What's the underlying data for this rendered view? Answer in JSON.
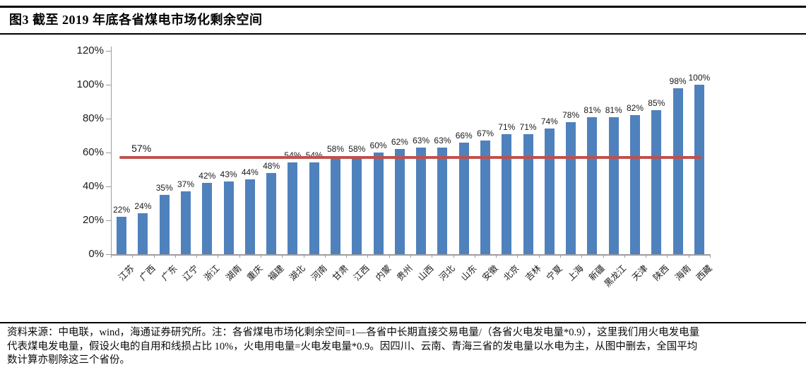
{
  "header": {
    "title": "图3  截至 2019 年底各省煤电市场化剩余空间"
  },
  "chart_data": {
    "type": "bar",
    "title": "截至2019年底各省煤电市场化剩余空间",
    "categories": [
      "江苏",
      "广西",
      "广东",
      "辽宁",
      "浙江",
      "湖南",
      "重庆",
      "福建",
      "湖北",
      "河南",
      "甘肃",
      "江西",
      "内蒙",
      "贵州",
      "山西",
      "河北",
      "山东",
      "安徽",
      "北京",
      "吉林",
      "宁夏",
      "上海",
      "新疆",
      "黑龙江",
      "天津",
      "陕西",
      "海南",
      "西藏"
    ],
    "values": [
      22,
      24,
      35,
      37,
      42,
      43,
      44,
      48,
      54,
      54,
      58,
      58,
      60,
      62,
      63,
      63,
      66,
      67,
      71,
      71,
      74,
      78,
      81,
      81,
      82,
      85,
      98,
      100
    ],
    "value_labels": [
      "22%",
      "24%",
      "35%",
      "37%",
      "42%",
      "43%",
      "44%",
      "48%",
      "54%",
      "54%",
      "58%",
      "58%",
      "60%",
      "62%",
      "63%",
      "63%",
      "66%",
      "67%",
      "71%",
      "71%",
      "74%",
      "78%",
      "81%",
      "81%",
      "82%",
      "85%",
      "98%",
      "100%"
    ],
    "xlabel": "",
    "ylabel": "",
    "ylim": [
      0,
      120
    ],
    "ytick_labels": [
      "0%",
      "20%",
      "40%",
      "60%",
      "80%",
      "100%",
      "120%"
    ],
    "grid": false,
    "legend": "none",
    "bar_color": "#4f81bd",
    "axis_color": "#9c9c9c",
    "label_color": "#1a1a1a",
    "reference_line": {
      "value": 57,
      "label": "57%",
      "color": "#c0504d"
    }
  },
  "footer": {
    "lines": [
      "资料来源：中电联，wind，海通证券研究所。注：各省煤电市场化剩余空间=1—各省中长期直接交易电量/（各省火电发电量*0.9），这里我们用火电发电量",
      "代表煤电发电量，假设火电的自用和线损占比 10%，火电用电量=火电发电量*0.9。因四川、云南、青海三省的发电量以水电为主，从图中删去，全国平均",
      "数计算亦剔除这三个省份。"
    ]
  }
}
